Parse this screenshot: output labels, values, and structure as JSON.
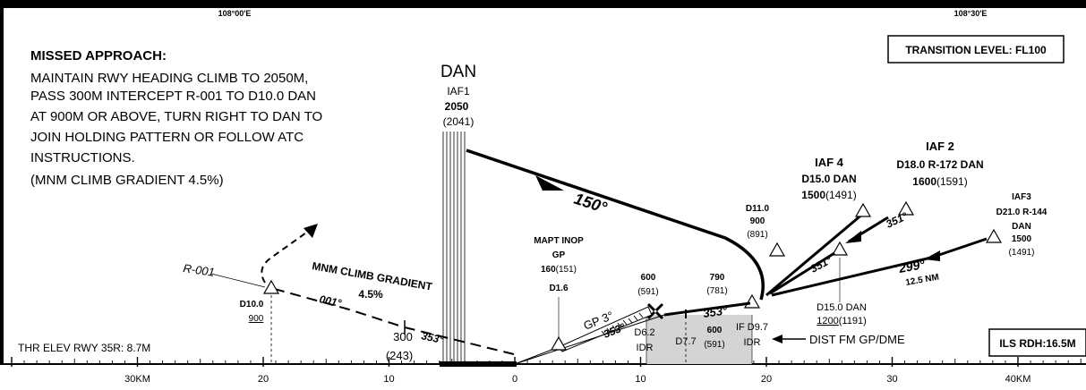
{
  "top_coords": {
    "left": "108°00'E",
    "right": "108°30'E"
  },
  "missed_approach": {
    "title": "MISSED APPROACH:",
    "lines": [
      "MAINTAIN RWY HEADING CLIMB TO 2050M,",
      "PASS 300M INTERCEPT R-001 TO D10.0 DAN",
      "AT 900M OR ABOVE, TURN RIGHT TO DAN TO",
      "JOIN HOLDING PATTERN OR FOLLOW ATC",
      "INSTRUCTIONS.",
      "(MNM CLIMB GRADIENT 4.5%)"
    ]
  },
  "transition_level": "TRANSITION LEVEL: FL100",
  "dan": {
    "name": "DAN",
    "label": "IAF1",
    "alt": "2050",
    "alt_ref": "(2041)"
  },
  "course_150": "150°",
  "d11": {
    "name": "D11.0",
    "alt": "900",
    "alt_ref": "(891)"
  },
  "iaf4": {
    "name": "IAF 4",
    "dist": "D15.0 DAN",
    "alt": "1500",
    "alt_ref": "(1491)"
  },
  "iaf2": {
    "name": "IAF 2",
    "dist": "D18.0 R-172 DAN",
    "alt": "1600",
    "alt_ref": "(1591)"
  },
  "iaf3": {
    "name": "IAF3",
    "dist": "D21.0 R-144",
    "station": "DAN",
    "alt": "1500",
    "alt_ref": "(1491)"
  },
  "heading_351_a": "351°",
  "heading_351_b": "351°",
  "heading_299": "299°",
  "dist_125": "12.5 NM",
  "d15": {
    "dist": "D15.0 DAN",
    "alt": "1200",
    "alt_ref": "(1191)"
  },
  "if_790": {
    "alt": "790",
    "alt_ref": "(781)"
  },
  "heading_353_a": "353°",
  "heading_353_b": "353°",
  "heading_353_c": "353°",
  "gp": "GP 3°",
  "mapt": {
    "line1": "MAPT INOP",
    "line2": "GP",
    "alt": "160",
    "alt_ref": "(151)",
    "dist": "D1.6"
  },
  "fix_600": {
    "alt": "600",
    "alt_ref": "(591)"
  },
  "fix_600b": {
    "alt": "600",
    "alt_ref": "(591)"
  },
  "r001": "R-001",
  "d10": {
    "name": "D10.0",
    "alt": "900"
  },
  "heading_001": "001°",
  "mnm_climb": {
    "line1": "MNM CLIMB GRADIENT",
    "line2": "4.5%"
  },
  "alt_300": {
    "alt": "300",
    "alt_ref": "(243)"
  },
  "d62": {
    "dist": "D6.2",
    "ident": "IDR"
  },
  "d77": "D7.7",
  "if_d97": {
    "line1": "IF D9.7",
    "line2": "IDR"
  },
  "dist_fm": "DIST FM GP/DME",
  "thr_elev": "THR ELEV RWY 35R: 8.7M",
  "ils_rdh": "ILS RDH:16.5M",
  "scale": [
    {
      "label": "30KM",
      "km": -30
    },
    {
      "label": "20",
      "km": -20
    },
    {
      "label": "10",
      "km": -10
    },
    {
      "label": "0",
      "km": 0
    },
    {
      "label": "10",
      "km": 10
    },
    {
      "label": "20",
      "km": 20
    },
    {
      "label": "30",
      "km": 30
    },
    {
      "label": "40KM",
      "km": 40
    }
  ]
}
